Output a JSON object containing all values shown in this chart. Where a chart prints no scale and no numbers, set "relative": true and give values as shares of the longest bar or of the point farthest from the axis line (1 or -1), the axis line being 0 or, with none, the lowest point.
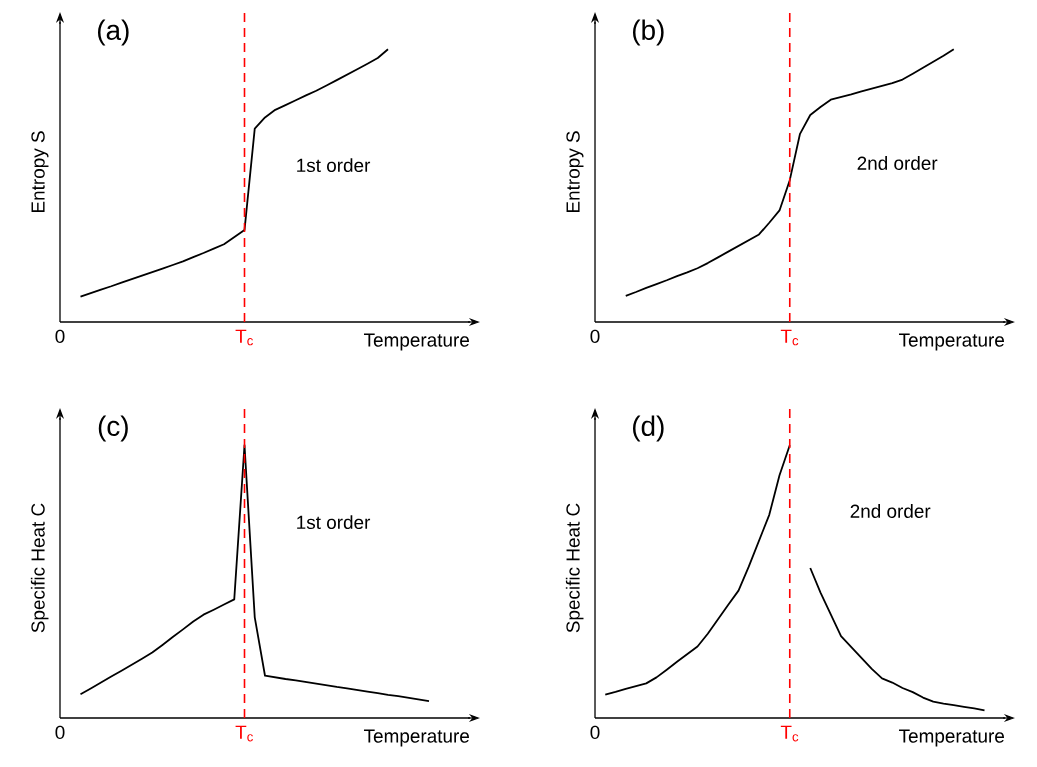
{
  "chart_data": [
    {
      "type": "line",
      "title": "(a)",
      "xlabel": "Temperature",
      "ylabel": "Entropy S",
      "relative": true,
      "categories": [
        "0",
        null,
        null,
        null,
        null,
        null,
        null,
        null,
        null,
        null,
        null,
        null,
        null,
        null,
        null,
        null,
        null,
        null,
        "T$_{c}$",
        null,
        null,
        null,
        null,
        null,
        null,
        null,
        null,
        null,
        null,
        null,
        null,
        null,
        null,
        null,
        null,
        null,
        null,
        null,
        null,
        null,
        null
      ],
      "ref_lines": [
        {
          "axis": "x",
          "value": "T$_{c}$",
          "color": "#ff0000",
          "line_style": "dashed"
        }
      ],
      "annotations": [
        "1st order"
      ],
      "series": [
        {
          "color": "#000000",
          "values": [
            null,
            null,
            0.093,
            0.106,
            0.119,
            0.131,
            0.144,
            0.157,
            0.17,
            0.183,
            0.196,
            0.209,
            0.222,
            0.238,
            0.253,
            0.269,
            0.285,
            0.311,
            0.337,
            0.709,
            0.75,
            0.778,
            0.795,
            0.813,
            0.831,
            0.848,
            0.867,
            0.887,
            0.907,
            0.927,
            0.947,
            0.968,
            1.0,
            null,
            null,
            null,
            null,
            null,
            null,
            null,
            null
          ]
        }
      ]
    },
    {
      "type": "line",
      "title": "(b)",
      "xlabel": "Temperature",
      "ylabel": "Entropy S",
      "relative": true,
      "categories": [
        "0",
        null,
        null,
        null,
        null,
        null,
        null,
        null,
        null,
        null,
        null,
        null,
        null,
        null,
        null,
        null,
        null,
        null,
        null,
        "T$_{c}$",
        null,
        null,
        null,
        null,
        null,
        null,
        null,
        null,
        null,
        null,
        null,
        null,
        null,
        null,
        null,
        null,
        null,
        null,
        null,
        null,
        null
      ],
      "ref_lines": [
        {
          "axis": "x",
          "value": "T$_{c}$",
          "color": "#ff0000",
          "line_style": "dashed"
        }
      ],
      "annotations": [
        "2nd order"
      ],
      "series": [
        {
          "color": "#000000",
          "values": [
            null,
            null,
            null,
            0.096,
            0.11,
            0.125,
            0.139,
            0.153,
            0.168,
            0.182,
            0.197,
            0.216,
            0.237,
            0.258,
            0.279,
            0.3,
            0.321,
            0.364,
            0.409,
            0.52,
            0.69,
            0.759,
            0.788,
            0.815,
            0.825,
            0.835,
            0.846,
            0.856,
            0.866,
            0.876,
            0.889,
            0.91,
            0.932,
            0.954,
            0.976,
            1.0,
            null,
            null,
            null,
            null,
            null
          ]
        }
      ]
    },
    {
      "type": "line",
      "title": "(c)",
      "xlabel": "Temperature",
      "ylabel": "Specific Heat C",
      "relative": true,
      "categories": [
        "0",
        null,
        null,
        null,
        null,
        null,
        null,
        null,
        null,
        null,
        null,
        null,
        null,
        null,
        null,
        null,
        null,
        null,
        "T$_{c}$",
        null,
        null,
        null,
        null,
        null,
        null,
        null,
        null,
        null,
        null,
        null,
        null,
        null,
        null,
        null,
        null,
        null,
        null,
        null,
        null,
        null,
        null
      ],
      "ref_lines": [
        {
          "axis": "x",
          "value": "T$_{c}$",
          "color": "#ff0000",
          "line_style": "dashed"
        }
      ],
      "annotations": [
        "1st order"
      ],
      "series": [
        {
          "color": "#000000",
          "values": [
            null,
            null,
            0.087,
            0.108,
            0.13,
            0.152,
            0.173,
            0.195,
            0.217,
            0.24,
            0.268,
            0.297,
            0.325,
            0.354,
            0.379,
            0.397,
            0.416,
            0.435,
            1.0,
            0.369,
            0.155,
            0.149,
            0.143,
            0.138,
            0.132,
            0.126,
            0.12,
            0.114,
            0.109,
            0.103,
            0.097,
            0.091,
            0.085,
            0.08,
            0.074,
            0.068,
            0.062,
            null,
            null,
            null,
            null
          ]
        }
      ]
    },
    {
      "type": "line",
      "title": "(d)",
      "xlabel": "Temperature",
      "ylabel": "Specific Heat C",
      "relative": true,
      "categories": [
        "0",
        null,
        null,
        null,
        null,
        null,
        null,
        null,
        null,
        null,
        null,
        null,
        null,
        null,
        null,
        null,
        null,
        null,
        null,
        "T$_{c}$",
        null,
        null,
        null,
        null,
        null,
        null,
        null,
        null,
        null,
        null,
        null,
        null,
        null,
        null,
        null,
        null,
        null,
        null,
        null,
        null,
        null
      ],
      "ref_lines": [
        {
          "axis": "x",
          "value": "T$_{c}$",
          "color": "#ff0000",
          "line_style": "dashed"
        }
      ],
      "annotations": [
        "2nd order"
      ],
      "series": [
        {
          "color": "#000000",
          "values": [
            null,
            0.086,
            0.096,
            0.107,
            0.117,
            0.127,
            0.149,
            0.177,
            0.206,
            0.234,
            0.262,
            0.309,
            0.362,
            0.415,
            0.467,
            0.555,
            0.65,
            0.745,
            0.89,
            1.0,
            null,
            0.55,
            0.46,
            0.38,
            0.3,
            0.26,
            0.22,
            0.18,
            0.145,
            0.13,
            0.11,
            0.095,
            0.075,
            0.06,
            0.053,
            0.047,
            0.041,
            0.035,
            0.028,
            null,
            null
          ]
        }
      ]
    }
  ]
}
